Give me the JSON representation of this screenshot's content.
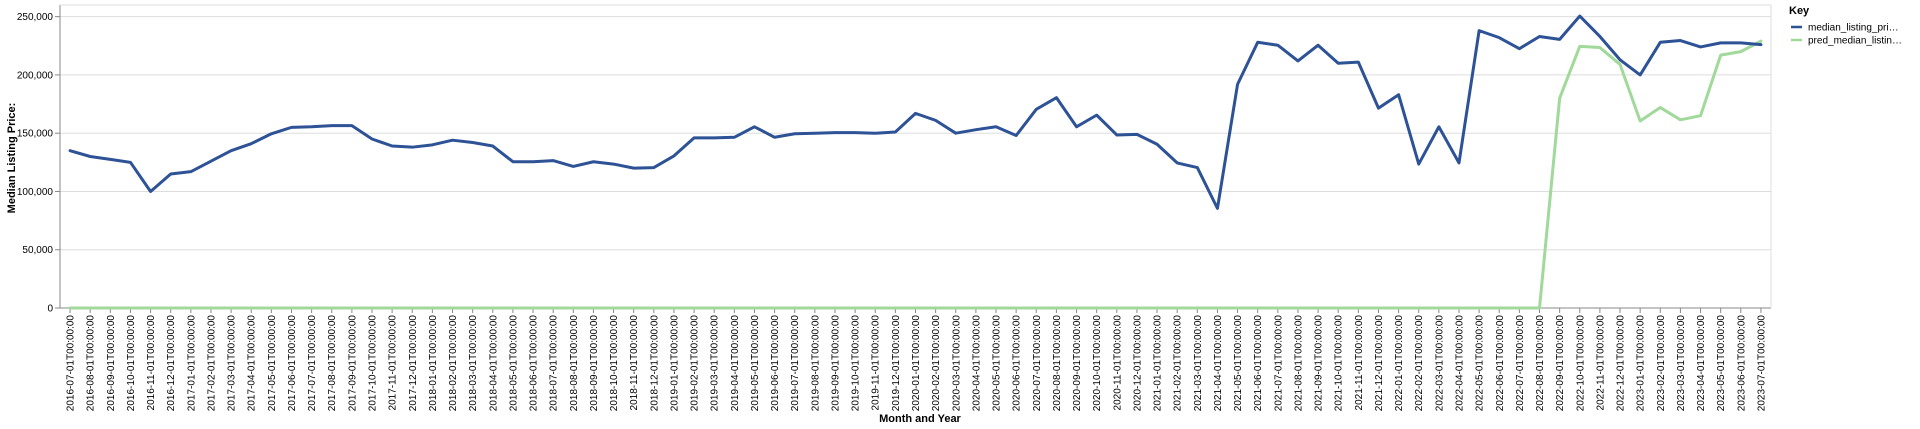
{
  "chart_data": {
    "type": "line",
    "xlabel": "Month and Year",
    "ylabel": "Median Listing Price:",
    "ylim": [
      0,
      260000
    ],
    "yticks": [
      "0",
      "50,000",
      "100,000",
      "150,000",
      "200,000",
      "250,000"
    ],
    "ytick_values": [
      0,
      50000,
      100000,
      150000,
      200000,
      250000
    ],
    "grid": true,
    "legend": {
      "title": "Key",
      "placement": "top-right",
      "entries": [
        "median_listing_pri…",
        "pred_median_listin…"
      ]
    },
    "x": [
      "2016-07-01T00:00:00",
      "2016-08-01T00:00:00",
      "2016-09-01T00:00:00",
      "2016-10-01T00:00:00",
      "2016-11-01T00:00:00",
      "2016-12-01T00:00:00",
      "2017-01-01T00:00:00",
      "2017-02-01T00:00:00",
      "2017-03-01T00:00:00",
      "2017-04-01T00:00:00",
      "2017-05-01T00:00:00",
      "2017-06-01T00:00:00",
      "2017-07-01T00:00:00",
      "2017-08-01T00:00:00",
      "2017-09-01T00:00:00",
      "2017-10-01T00:00:00",
      "2017-11-01T00:00:00",
      "2017-12-01T00:00:00",
      "2018-01-01T00:00:00",
      "2018-02-01T00:00:00",
      "2018-03-01T00:00:00",
      "2018-04-01T00:00:00",
      "2018-05-01T00:00:00",
      "2018-06-01T00:00:00",
      "2018-07-01T00:00:00",
      "2018-08-01T00:00:00",
      "2018-09-01T00:00:00",
      "2018-10-01T00:00:00",
      "2018-11-01T00:00:00",
      "2018-12-01T00:00:00",
      "2019-01-01T00:00:00",
      "2019-02-01T00:00:00",
      "2019-03-01T00:00:00",
      "2019-04-01T00:00:00",
      "2019-05-01T00:00:00",
      "2019-06-01T00:00:00",
      "2019-07-01T00:00:00",
      "2019-08-01T00:00:00",
      "2019-09-01T00:00:00",
      "2019-10-01T00:00:00",
      "2019-11-01T00:00:00",
      "2019-12-01T00:00:00",
      "2020-01-01T00:00:00",
      "2020-02-01T00:00:00",
      "2020-03-01T00:00:00",
      "2020-04-01T00:00:00",
      "2020-05-01T00:00:00",
      "2020-06-01T00:00:00",
      "2020-07-01T00:00:00",
      "2020-08-01T00:00:00",
      "2020-09-01T00:00:00",
      "2020-10-01T00:00:00",
      "2020-11-01T00:00:00",
      "2020-12-01T00:00:00",
      "2021-01-01T00:00:00",
      "2021-02-01T00:00:00",
      "2021-03-01T00:00:00",
      "2021-04-01T00:00:00",
      "2021-05-01T00:00:00",
      "2021-06-01T00:00:00",
      "2021-07-01T00:00:00",
      "2021-08-01T00:00:00",
      "2021-09-01T00:00:00",
      "2021-10-01T00:00:00",
      "2021-11-01T00:00:00",
      "2021-12-01T00:00:00",
      "2022-01-01T00:00:00",
      "2022-02-01T00:00:00",
      "2022-03-01T00:00:00",
      "2022-04-01T00:00:00",
      "2022-05-01T00:00:00",
      "2022-06-01T00:00:00",
      "2022-07-01T00:00:00",
      "2022-08-01T00:00:00",
      "2022-09-01T00:00:00",
      "2022-10-01T00:00:00",
      "2022-11-01T00:00:00",
      "2022-12-01T00:00:00",
      "2023-01-01T00:00:00",
      "2023-02-01T00:00:00",
      "2023-03-01T00:00:00",
      "2023-04-01T00:00:00",
      "2023-05-01T00:00:00",
      "2023-06-01T00:00:00",
      "2023-07-01T00:00:00"
    ],
    "series": [
      {
        "name": "median_listing_pri…",
        "color": "#2d5296",
        "values": [
          135000,
          130000,
          127500,
          125000,
          100000,
          115000,
          117000,
          126000,
          135000,
          141000,
          149500,
          155000,
          155500,
          156500,
          156500,
          145000,
          139000,
          138000,
          140000,
          144000,
          142000,
          139000,
          125500,
          125500,
          126500,
          121500,
          125500,
          123500,
          120000,
          120500,
          130500,
          146000,
          146000,
          146500,
          155500,
          146500,
          149500,
          150000,
          150500,
          150500,
          150000,
          151000,
          167000,
          161000,
          150000,
          153000,
          155500,
          148000,
          170500,
          180500,
          155500,
          165500,
          148500,
          149000,
          140500,
          124500,
          120500,
          85500,
          192000,
          228000,
          225500,
          212000,
          225500,
          210000,
          211000,
          171500,
          183000,
          123500,
          155500,
          124500,
          238000,
          232000,
          222500,
          233000,
          230500,
          250500,
          233000,
          213000,
          200000,
          228000,
          229500,
          224000,
          227500,
          227500,
          226000
        ]
      },
      {
        "name": "pred_median_listin…",
        "color": "#a1d99b",
        "values": [
          0,
          0,
          0,
          0,
          0,
          0,
          0,
          0,
          0,
          0,
          0,
          0,
          0,
          0,
          0,
          0,
          0,
          0,
          0,
          0,
          0,
          0,
          0,
          0,
          0,
          0,
          0,
          0,
          0,
          0,
          0,
          0,
          0,
          0,
          0,
          0,
          0,
          0,
          0,
          0,
          0,
          0,
          0,
          0,
          0,
          0,
          0,
          0,
          0,
          0,
          0,
          0,
          0,
          0,
          0,
          0,
          0,
          0,
          0,
          0,
          0,
          0,
          0,
          0,
          0,
          0,
          0,
          0,
          0,
          0,
          0,
          0,
          0,
          0,
          180000,
          224500,
          223500,
          209000,
          160500,
          172000,
          161500,
          165000,
          217000,
          220000,
          229000
        ]
      }
    ]
  }
}
